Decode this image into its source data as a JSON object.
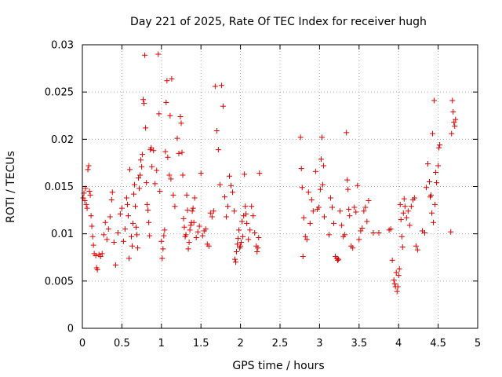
{
  "chart_data": {
    "type": "scatter",
    "title": "Day 221 of 2025, Rate Of TEC Index for receiver hugh",
    "xlabel": "GPS time / hours",
    "ylabel": "ROTI / TECUs",
    "xlim": [
      0,
      5
    ],
    "ylim": [
      0,
      0.03
    ],
    "x_ticks": [
      0,
      0.5,
      1,
      1.5,
      2,
      2.5,
      3,
      3.5,
      4,
      4.5,
      5
    ],
    "y_ticks": [
      0,
      0.005,
      0.01,
      0.015,
      0.02,
      0.025,
      0.03
    ],
    "x_tick_labels": [
      "0",
      "0.5",
      "1",
      "1.5",
      "2",
      "2.5",
      "3",
      "3.5",
      "4",
      "4.5",
      "5"
    ],
    "y_tick_labels": [
      "0",
      "0.005",
      "0.01",
      "0.015",
      "0.02",
      "0.025",
      "0.03"
    ],
    "grid": true,
    "marker": "+",
    "marker_color": "#dd0000",
    "series": [
      {
        "name": "ROTI",
        "points": [
          [
            0.01,
            0.0138
          ],
          [
            0.02,
            0.0143
          ],
          [
            0.03,
            0.0135
          ],
          [
            0.04,
            0.0148
          ],
          [
            0.05,
            0.0131
          ],
          [
            0.06,
            0.0127
          ],
          [
            0.07,
            0.0168
          ],
          [
            0.08,
            0.0172
          ],
          [
            0.09,
            0.0145
          ],
          [
            0.1,
            0.0141
          ],
          [
            0.11,
            0.0119
          ],
          [
            0.12,
            0.0108
          ],
          [
            0.13,
            0.0097
          ],
          [
            0.14,
            0.0088
          ],
          [
            0.15,
            0.0079
          ],
          [
            0.17,
            0.0077
          ],
          [
            0.18,
            0.0064
          ],
          [
            0.19,
            0.0062
          ],
          [
            0.21,
            0.0078
          ],
          [
            0.23,
            0.0076
          ],
          [
            0.25,
            0.0079
          ],
          [
            0.27,
            0.0099
          ],
          [
            0.29,
            0.0112
          ],
          [
            0.31,
            0.0094
          ],
          [
            0.33,
            0.0105
          ],
          [
            0.35,
            0.0118
          ],
          [
            0.37,
            0.0136
          ],
          [
            0.38,
            0.0144
          ],
          [
            0.4,
            0.0091
          ],
          [
            0.42,
            0.0067
          ],
          [
            0.45,
            0.0101
          ],
          [
            0.48,
            0.0121
          ],
          [
            0.5,
            0.0127
          ],
          [
            0.52,
            0.0092
          ],
          [
            0.54,
            0.0105
          ],
          [
            0.56,
            0.0138
          ],
          [
            0.57,
            0.0131
          ],
          [
            0.58,
            0.0119
          ],
          [
            0.59,
            0.0074
          ],
          [
            0.6,
            0.0168
          ],
          [
            0.62,
            0.0097
          ],
          [
            0.63,
            0.0087
          ],
          [
            0.64,
            0.0111
          ],
          [
            0.65,
            0.0142
          ],
          [
            0.66,
            0.0152
          ],
          [
            0.67,
            0.0129
          ],
          [
            0.68,
            0.0107
          ],
          [
            0.69,
            0.0099
          ],
          [
            0.7,
            0.0085
          ],
          [
            0.71,
            0.0159
          ],
          [
            0.72,
            0.0148
          ],
          [
            0.73,
            0.0162
          ],
          [
            0.74,
            0.0178
          ],
          [
            0.75,
            0.0171
          ],
          [
            0.76,
            0.0184
          ],
          [
            0.77,
            0.0242
          ],
          [
            0.78,
            0.0238
          ],
          [
            0.79,
            0.0289
          ],
          [
            0.8,
            0.0212
          ],
          [
            0.81,
            0.0154
          ],
          [
            0.82,
            0.0131
          ],
          [
            0.83,
            0.0125
          ],
          [
            0.84,
            0.0112
          ],
          [
            0.85,
            0.0098
          ],
          [
            0.86,
            0.0189
          ],
          [
            0.87,
            0.0191
          ],
          [
            0.88,
            0.0171
          ],
          [
            0.9,
            0.0188
          ],
          [
            0.92,
            0.0153
          ],
          [
            0.94,
            0.0167
          ],
          [
            0.96,
            0.029
          ],
          [
            0.97,
            0.0227
          ],
          [
            0.98,
            0.0145
          ],
          [
            1.0,
            0.0092
          ],
          [
            1.01,
            0.0074
          ],
          [
            1.02,
            0.0084
          ],
          [
            1.03,
            0.0098
          ],
          [
            1.04,
            0.0104
          ],
          [
            1.05,
            0.0187
          ],
          [
            1.06,
            0.0239
          ],
          [
            1.07,
            0.0262
          ],
          [
            1.08,
            0.0181
          ],
          [
            1.1,
            0.0162
          ],
          [
            1.11,
            0.0225
          ],
          [
            1.12,
            0.0158
          ],
          [
            1.13,
            0.0264
          ],
          [
            1.15,
            0.0141
          ],
          [
            1.17,
            0.0129
          ],
          [
            1.2,
            0.0201
          ],
          [
            1.22,
            0.0185
          ],
          [
            1.24,
            0.0224
          ],
          [
            1.25,
            0.0217
          ],
          [
            1.26,
            0.0186
          ],
          [
            1.27,
            0.0162
          ],
          [
            1.28,
            0.0116
          ],
          [
            1.29,
            0.0107
          ],
          [
            1.3,
            0.0097
          ],
          [
            1.31,
            0.0099
          ],
          [
            1.32,
            0.0141
          ],
          [
            1.33,
            0.0125
          ],
          [
            1.34,
            0.0084
          ],
          [
            1.35,
            0.0091
          ],
          [
            1.36,
            0.0104
          ],
          [
            1.37,
            0.0109
          ],
          [
            1.38,
            0.0112
          ],
          [
            1.39,
            0.0124
          ],
          [
            1.4,
            0.0127
          ],
          [
            1.41,
            0.0112
          ],
          [
            1.42,
            0.0138
          ],
          [
            1.44,
            0.0096
          ],
          [
            1.46,
            0.0102
          ],
          [
            1.48,
            0.0108
          ],
          [
            1.5,
            0.0164
          ],
          [
            1.52,
            0.0098
          ],
          [
            1.54,
            0.0103
          ],
          [
            1.56,
            0.0105
          ],
          [
            1.58,
            0.0089
          ],
          [
            1.6,
            0.0087
          ],
          [
            1.62,
            0.0122
          ],
          [
            1.64,
            0.0118
          ],
          [
            1.66,
            0.0124
          ],
          [
            1.68,
            0.0256
          ],
          [
            1.7,
            0.0209
          ],
          [
            1.72,
            0.0189
          ],
          [
            1.74,
            0.0152
          ],
          [
            1.76,
            0.0257
          ],
          [
            1.78,
            0.0235
          ],
          [
            1.8,
            0.0139
          ],
          [
            1.82,
            0.0118
          ],
          [
            1.84,
            0.0129
          ],
          [
            1.86,
            0.0161
          ],
          [
            1.88,
            0.0151
          ],
          [
            1.9,
            0.0144
          ],
          [
            1.92,
            0.0124
          ],
          [
            1.93,
            0.0073
          ],
          [
            1.94,
            0.007
          ],
          [
            1.95,
            0.0081
          ],
          [
            1.96,
            0.0089
          ],
          [
            1.97,
            0.0095
          ],
          [
            1.98,
            0.0104
          ],
          [
            1.99,
            0.0085
          ],
          [
            2.0,
            0.0087
          ],
          [
            2.01,
            0.0091
          ],
          [
            2.02,
            0.0113
          ],
          [
            2.03,
            0.0097
          ],
          [
            2.04,
            0.0119
          ],
          [
            2.05,
            0.0163
          ],
          [
            2.06,
            0.0129
          ],
          [
            2.07,
            0.0121
          ],
          [
            2.08,
            0.0111
          ],
          [
            2.1,
            0.0094
          ],
          [
            2.12,
            0.0104
          ],
          [
            2.14,
            0.0129
          ],
          [
            2.16,
            0.0119
          ],
          [
            2.18,
            0.0101
          ],
          [
            2.2,
            0.0087
          ],
          [
            2.21,
            0.0081
          ],
          [
            2.22,
            0.0085
          ],
          [
            2.23,
            0.0096
          ],
          [
            2.24,
            0.0164
          ],
          [
            2.76,
            0.0202
          ],
          [
            2.77,
            0.0169
          ],
          [
            2.78,
            0.0149
          ],
          [
            2.79,
            0.0076
          ],
          [
            2.8,
            0.0117
          ],
          [
            2.82,
            0.0097
          ],
          [
            2.84,
            0.0094
          ],
          [
            2.86,
            0.0144
          ],
          [
            2.88,
            0.0111
          ],
          [
            2.9,
            0.0136
          ],
          [
            2.92,
            0.0124
          ],
          [
            2.95,
            0.0166
          ],
          [
            2.97,
            0.0126
          ],
          [
            2.99,
            0.0128
          ],
          [
            3.01,
            0.0147
          ],
          [
            3.02,
            0.0179
          ],
          [
            3.03,
            0.0202
          ],
          [
            3.04,
            0.0152
          ],
          [
            3.05,
            0.0172
          ],
          [
            3.06,
            0.0118
          ],
          [
            3.12,
            0.0099
          ],
          [
            3.14,
            0.0138
          ],
          [
            3.16,
            0.0128
          ],
          [
            3.18,
            0.0111
          ],
          [
            3.2,
            0.0076
          ],
          [
            3.22,
            0.0074
          ],
          [
            3.23,
            0.0072
          ],
          [
            3.24,
            0.0073
          ],
          [
            3.26,
            0.0124
          ],
          [
            3.28,
            0.0109
          ],
          [
            3.3,
            0.0097
          ],
          [
            3.32,
            0.0099
          ],
          [
            3.34,
            0.0207
          ],
          [
            3.35,
            0.0157
          ],
          [
            3.36,
            0.0147
          ],
          [
            3.37,
            0.0126
          ],
          [
            3.38,
            0.0119
          ],
          [
            3.4,
            0.0087
          ],
          [
            3.42,
            0.0085
          ],
          [
            3.44,
            0.0128
          ],
          [
            3.46,
            0.0123
          ],
          [
            3.48,
            0.0151
          ],
          [
            3.5,
            0.0094
          ],
          [
            3.52,
            0.0103
          ],
          [
            3.54,
            0.0106
          ],
          [
            3.56,
            0.0124
          ],
          [
            3.58,
            0.0128
          ],
          [
            3.6,
            0.0113
          ],
          [
            3.62,
            0.0135
          ],
          [
            3.68,
            0.0101
          ],
          [
            3.75,
            0.0101
          ],
          [
            3.88,
            0.0104
          ],
          [
            3.9,
            0.0105
          ],
          [
            3.92,
            0.0072
          ],
          [
            3.94,
            0.0051
          ],
          [
            3.95,
            0.0047
          ],
          [
            3.96,
            0.0044
          ],
          [
            3.97,
            0.0059
          ],
          [
            3.98,
            0.0039
          ],
          [
            3.99,
            0.0044
          ],
          [
            4.0,
            0.0056
          ],
          [
            4.01,
            0.0063
          ],
          [
            4.02,
            0.0131
          ],
          [
            4.03,
            0.0115
          ],
          [
            4.04,
            0.0097
          ],
          [
            4.05,
            0.0086
          ],
          [
            4.06,
            0.0122
          ],
          [
            4.07,
            0.0137
          ],
          [
            4.08,
            0.0129
          ],
          [
            4.1,
            0.0117
          ],
          [
            4.12,
            0.0124
          ],
          [
            4.14,
            0.0109
          ],
          [
            4.16,
            0.0129
          ],
          [
            4.18,
            0.0136
          ],
          [
            4.2,
            0.0138
          ],
          [
            4.22,
            0.0087
          ],
          [
            4.24,
            0.0083
          ],
          [
            4.3,
            0.0103
          ],
          [
            4.33,
            0.0101
          ],
          [
            4.35,
            0.0149
          ],
          [
            4.37,
            0.0174
          ],
          [
            4.39,
            0.0155
          ],
          [
            4.4,
            0.0139
          ],
          [
            4.41,
            0.0141
          ],
          [
            4.42,
            0.0122
          ],
          [
            4.43,
            0.0206
          ],
          [
            4.44,
            0.0112
          ],
          [
            4.45,
            0.0241
          ],
          [
            4.46,
            0.0131
          ],
          [
            4.47,
            0.0165
          ],
          [
            4.48,
            0.0154
          ],
          [
            4.5,
            0.0172
          ],
          [
            4.51,
            0.0191
          ],
          [
            4.52,
            0.0194
          ],
          [
            4.66,
            0.0102
          ],
          [
            4.67,
            0.0206
          ],
          [
            4.68,
            0.0241
          ],
          [
            4.69,
            0.0229
          ],
          [
            4.7,
            0.0218
          ],
          [
            4.71,
            0.0214
          ],
          [
            4.72,
            0.0221
          ]
        ]
      }
    ]
  }
}
